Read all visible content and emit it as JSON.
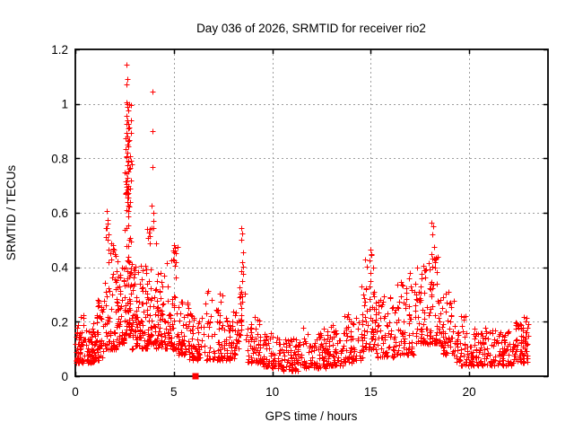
{
  "window": {
    "background": "#ffffff"
  },
  "chart_data": {
    "type": "scatter",
    "title": "Day 036 of 2026, SRMTID for receiver rio2",
    "xlabel": "GPS time / hours",
    "ylabel": "SRMTID / TECUs",
    "xlim": [
      0,
      24
    ],
    "ylim": [
      0,
      1.2
    ],
    "xticks": [
      0,
      5,
      10,
      15,
      20
    ],
    "xtick_labels": [
      "0",
      "5",
      "10",
      "15",
      "20"
    ],
    "yticks": [
      0,
      0.2,
      0.4,
      0.6,
      0.8,
      1,
      1.2
    ],
    "ytick_labels": [
      "0",
      "0.2",
      "0.4",
      "0.6",
      "0.8",
      "1",
      "1.2"
    ],
    "grid": true,
    "legend": "none",
    "marker": "plus",
    "marker_color": "#ff0000",
    "grid_color": "#9e9e9e",
    "border_color": "#000000",
    "seed": 1337,
    "special_points": [
      {
        "x": 6.1,
        "y": 0,
        "marker": "filled-square",
        "color": "#ff0000"
      }
    ],
    "peak_points": [
      [
        2.59,
        1.145
      ],
      [
        2.62,
        1.09
      ],
      [
        2.61,
        1.07
      ],
      [
        2.6,
        1.005
      ],
      [
        2.66,
        1.0
      ],
      [
        2.63,
        0.99
      ],
      [
        2.68,
        0.975
      ],
      [
        2.58,
        0.955
      ],
      [
        2.64,
        0.94
      ],
      [
        2.61,
        0.925
      ],
      [
        2.67,
        0.91
      ],
      [
        2.59,
        0.895
      ],
      [
        2.65,
        0.88
      ],
      [
        2.7,
        0.865
      ],
      [
        2.62,
        0.85
      ],
      [
        2.57,
        0.835
      ],
      [
        2.66,
        0.82
      ],
      [
        2.6,
        0.805
      ],
      [
        2.68,
        0.79
      ],
      [
        2.63,
        0.775
      ],
      [
        2.71,
        0.76
      ],
      [
        2.58,
        0.745
      ],
      [
        2.65,
        0.73
      ],
      [
        2.61,
        0.715
      ],
      [
        2.69,
        0.7
      ],
      [
        2.64,
        0.685
      ],
      [
        2.56,
        0.67
      ],
      [
        2.67,
        0.655
      ],
      [
        2.62,
        0.64
      ],
      [
        2.7,
        0.625
      ],
      [
        2.59,
        0.61
      ],
      [
        3.92,
        1.046
      ],
      [
        3.9,
        0.9
      ],
      [
        3.91,
        0.767
      ],
      [
        3.89,
        0.625
      ],
      [
        3.94,
        0.6
      ],
      [
        3.96,
        0.57
      ],
      [
        1.6,
        0.605
      ],
      [
        1.63,
        0.575
      ],
      [
        1.66,
        0.56
      ],
      [
        1.58,
        0.545
      ],
      [
        1.7,
        0.52
      ],
      [
        1.62,
        0.5
      ],
      [
        8.44,
        0.545
      ],
      [
        8.47,
        0.525
      ],
      [
        8.43,
        0.5
      ],
      [
        8.5,
        0.455
      ],
      [
        8.46,
        0.42
      ],
      [
        8.44,
        0.385
      ],
      [
        8.49,
        0.35
      ],
      [
        8.42,
        0.31
      ],
      [
        8.48,
        0.275
      ],
      [
        15.0,
        0.465
      ],
      [
        15.05,
        0.445
      ],
      [
        14.95,
        0.425
      ],
      [
        15.1,
        0.4
      ],
      [
        14.98,
        0.38
      ],
      [
        18.1,
        0.565
      ],
      [
        18.16,
        0.55
      ],
      [
        18.13,
        0.52
      ],
      [
        18.2,
        0.475
      ],
      [
        18.08,
        0.45
      ],
      [
        18.24,
        0.43
      ],
      [
        17.66,
        0.405
      ],
      [
        17.73,
        0.39
      ],
      [
        5.0,
        0.48
      ],
      [
        5.03,
        0.455
      ],
      [
        4.97,
        0.43
      ],
      [
        5.06,
        0.405
      ],
      [
        3.56,
        0.405
      ],
      [
        3.58,
        0.38
      ],
      [
        14.55,
        0.33
      ],
      [
        14.6,
        0.3
      ],
      [
        17.0,
        0.38
      ],
      [
        16.95,
        0.36
      ],
      [
        22.9,
        0.215
      ],
      [
        22.85,
        0.2
      ]
    ],
    "density_bands": [
      [
        0.0,
        0.5,
        60,
        0.05,
        0.24,
        1.8
      ],
      [
        0.5,
        1.0,
        55,
        0.05,
        0.2,
        1.6
      ],
      [
        1.0,
        1.5,
        55,
        0.06,
        0.28,
        1.6
      ],
      [
        1.5,
        1.8,
        32,
        0.1,
        0.6,
        2.0
      ],
      [
        1.8,
        2.1,
        38,
        0.1,
        0.5,
        2.0
      ],
      [
        2.1,
        2.5,
        52,
        0.12,
        0.44,
        1.8
      ],
      [
        2.5,
        2.85,
        95,
        0.15,
        1.0,
        1.8
      ],
      [
        2.85,
        3.3,
        55,
        0.1,
        0.42,
        1.7
      ],
      [
        3.3,
        3.65,
        36,
        0.1,
        0.42,
        1.8
      ],
      [
        3.65,
        4.1,
        58,
        0.12,
        0.55,
        2.1
      ],
      [
        4.1,
        4.55,
        50,
        0.1,
        0.38,
        1.7
      ],
      [
        4.55,
        5.2,
        62,
        0.1,
        0.48,
        2.0
      ],
      [
        5.2,
        5.8,
        52,
        0.08,
        0.28,
        1.6
      ],
      [
        5.8,
        6.5,
        56,
        0.06,
        0.24,
        1.6
      ],
      [
        6.5,
        7.6,
        75,
        0.06,
        0.32,
        1.8
      ],
      [
        7.6,
        8.3,
        58,
        0.06,
        0.24,
        1.6
      ],
      [
        8.3,
        8.6,
        20,
        0.15,
        0.5,
        2.0
      ],
      [
        8.6,
        9.5,
        62,
        0.05,
        0.22,
        1.6
      ],
      [
        9.5,
        10.5,
        70,
        0.03,
        0.16,
        1.5
      ],
      [
        10.5,
        11.5,
        72,
        0.02,
        0.14,
        1.5
      ],
      [
        11.5,
        12.7,
        80,
        0.03,
        0.18,
        1.6
      ],
      [
        12.7,
        13.6,
        65,
        0.04,
        0.19,
        1.6
      ],
      [
        13.6,
        14.6,
        70,
        0.05,
        0.24,
        1.7
      ],
      [
        14.6,
        15.3,
        55,
        0.1,
        0.45,
        1.9
      ],
      [
        15.3,
        16.2,
        60,
        0.07,
        0.3,
        1.8
      ],
      [
        16.2,
        17.2,
        68,
        0.08,
        0.35,
        1.8
      ],
      [
        17.2,
        17.9,
        56,
        0.12,
        0.4,
        1.8
      ],
      [
        17.9,
        18.55,
        62,
        0.12,
        0.44,
        1.8
      ],
      [
        18.55,
        19.3,
        56,
        0.08,
        0.32,
        1.8
      ],
      [
        19.3,
        20.2,
        60,
        0.04,
        0.22,
        1.7
      ],
      [
        20.2,
        21.2,
        66,
        0.04,
        0.18,
        1.6
      ],
      [
        21.2,
        22.2,
        66,
        0.04,
        0.17,
        1.5
      ],
      [
        22.2,
        23.0,
        72,
        0.05,
        0.22,
        1.4
      ]
    ]
  }
}
